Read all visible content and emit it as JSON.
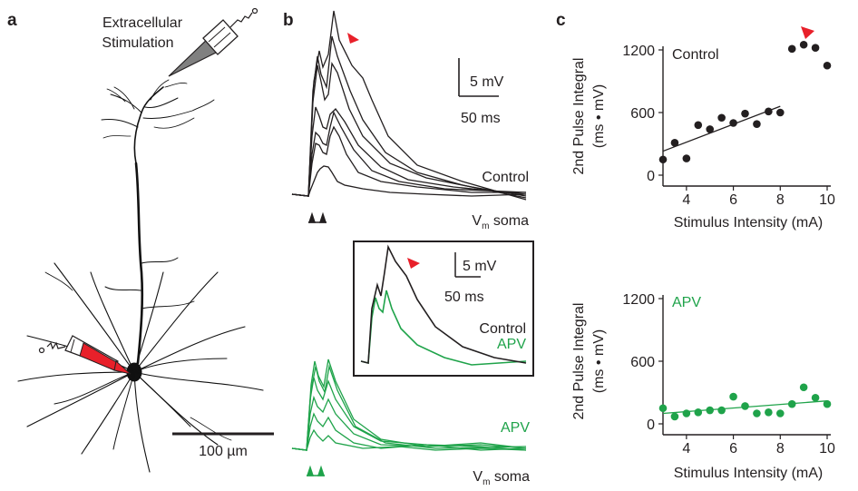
{
  "colors": {
    "ink": "#231f20",
    "control": "#231f20",
    "apv": "#1fa34a",
    "arrow": "#e8202a",
    "electrode_fill": "#808080",
    "recording_fill": "#e8202a"
  },
  "panel_a": {
    "letter": "a",
    "stim_label_line1": "Extracellular",
    "stim_label_line2": "Stimulation",
    "scale_bar_label": "100 µm"
  },
  "panel_b": {
    "letter": "b",
    "scale_v": "5 mV",
    "scale_t": "50 ms",
    "control_label": "Control",
    "vm_label": "V",
    "vm_sub": "m",
    "vm_rest": " soma",
    "inset": {
      "scale_v": "5 mV",
      "scale_t": "50 ms",
      "control_label": "Control",
      "apv_label": "APV"
    },
    "apv_label": "APV",
    "vm_label_2": "V",
    "vm_sub_2": "m",
    "vm_rest_2": " soma"
  },
  "panel_c": {
    "letter": "c",
    "ylabel_line1": "2nd Pulse Integral",
    "ylabel_line2": "(ms • mV)",
    "xlabel": "Stimulus Intensity (mA)",
    "x_ticks": [
      "4",
      "6",
      "8",
      "10"
    ],
    "y_ticks": [
      "0",
      "600",
      "1200"
    ]
  },
  "chart_data": [
    {
      "type": "scatter",
      "title": "Control",
      "xlabel": "Stimulus Intensity (mA)",
      "ylabel": "2nd Pulse Integral (ms • mV)",
      "xlim": [
        3,
        10
      ],
      "ylim": [
        0,
        1200
      ],
      "x": [
        3.0,
        3.5,
        4.0,
        4.5,
        5.0,
        5.5,
        6.0,
        6.5,
        7.0,
        7.5,
        8.0,
        8.5,
        9.0,
        9.5,
        10.0
      ],
      "y": [
        150,
        310,
        160,
        480,
        440,
        550,
        500,
        590,
        490,
        610,
        600,
        1210,
        1250,
        1220,
        1050
      ],
      "fit": {
        "x": [
          3.0,
          8.0
        ],
        "y": [
          230,
          660
        ]
      },
      "arrow_at_x": 9.0
    },
    {
      "type": "scatter",
      "title": "APV",
      "xlabel": "Stimulus Intensity (mA)",
      "ylabel": "2nd Pulse Integral (ms • mV)",
      "xlim": [
        3,
        10
      ],
      "ylim": [
        0,
        1200
      ],
      "x": [
        3.0,
        3.5,
        4.0,
        4.5,
        5.0,
        5.5,
        6.0,
        6.5,
        7.0,
        7.5,
        8.0,
        8.5,
        9.0,
        9.5,
        10.0
      ],
      "y": [
        150,
        70,
        100,
        110,
        130,
        130,
        260,
        170,
        100,
        110,
        100,
        190,
        350,
        250,
        190
      ],
      "fit": {
        "x": [
          3.0,
          10.0
        ],
        "y": [
          100,
          220
        ]
      }
    }
  ]
}
